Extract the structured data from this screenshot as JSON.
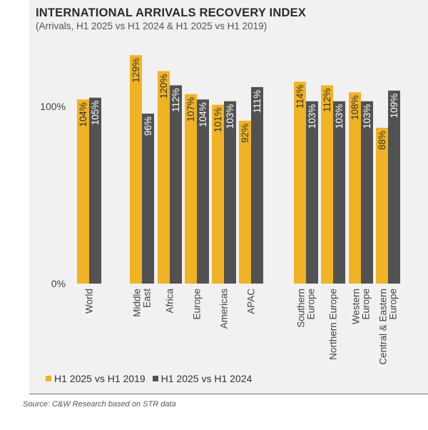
{
  "title": "INTERNATIONAL ARRIVALS RECOVERY INDEX",
  "subtitle": "(Arrivals, H1 2025 vs H1 2024 & H1 2025 vs H1 2019)",
  "source": "Source:  C&W Research based on STR data",
  "colors": {
    "series_2019": "#f0b323",
    "series_2024": "#505253",
    "panel": "#f1f1f1"
  },
  "chart_data": {
    "type": "bar",
    "ylim": [
      0,
      140
    ],
    "y_ticks": [
      {
        "value": 0,
        "label": "0%"
      },
      {
        "value": 100,
        "label": "100%"
      }
    ],
    "categories": [
      {
        "lines": [
          "World"
        ]
      },
      {
        "lines": [
          "Middle",
          "East"
        ]
      },
      {
        "lines": [
          "Africa"
        ]
      },
      {
        "lines": [
          "Europe"
        ]
      },
      {
        "lines": [
          "Americas"
        ]
      },
      {
        "lines": [
          "APAC"
        ]
      },
      {
        "lines": [
          "Southern",
          "Europe"
        ]
      },
      {
        "lines": [
          "Northern Europe"
        ]
      },
      {
        "lines": [
          "Western",
          "Europe"
        ]
      },
      {
        "lines": [
          "Central & Eastern",
          "Europe"
        ]
      }
    ],
    "series": [
      {
        "name": "H1 2025 vs H1 2019",
        "color": "#f0b323",
        "values": [
          104,
          129,
          120,
          107,
          101,
          92,
          114,
          112,
          108,
          88
        ],
        "labels": [
          "104%",
          "129%",
          "120%",
          "107%",
          "101%",
          "92%",
          "114%",
          "112%",
          "108%",
          "88%"
        ]
      },
      {
        "name": "H1 2025 vs H1 2024",
        "color": "#505253",
        "values": [
          105,
          96,
          112,
          104,
          103,
          111,
          103,
          103,
          103,
          109
        ],
        "labels": [
          "105%",
          "96%",
          "112%",
          "104%",
          "103%",
          "111%",
          "103%",
          "103%",
          "103%",
          "109%"
        ]
      }
    ],
    "legend": [
      {
        "label": "H1 2025 vs H1 2019",
        "color": "#f0b323"
      },
      {
        "label": "H1 2025 vs H1 2024",
        "color": "#505253"
      }
    ]
  }
}
